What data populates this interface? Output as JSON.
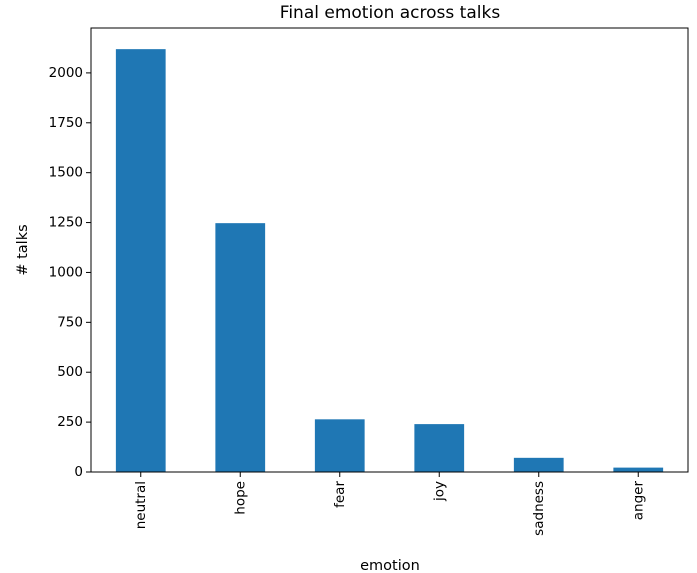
{
  "chart_data": {
    "type": "bar",
    "title": "Final emotion across talks",
    "xlabel": "emotion",
    "ylabel": "# talks",
    "categories": [
      "neutral",
      "hope",
      "fear",
      "joy",
      "sadness",
      "anger"
    ],
    "values": [
      2119,
      1247,
      264,
      240,
      71,
      22
    ],
    "ylim": [
      0,
      2225
    ],
    "yticks": [
      0,
      250,
      500,
      750,
      1000,
      1250,
      1500,
      1750,
      2000
    ],
    "bar_color": "#1f77b4",
    "grid": false,
    "legend": "none"
  }
}
